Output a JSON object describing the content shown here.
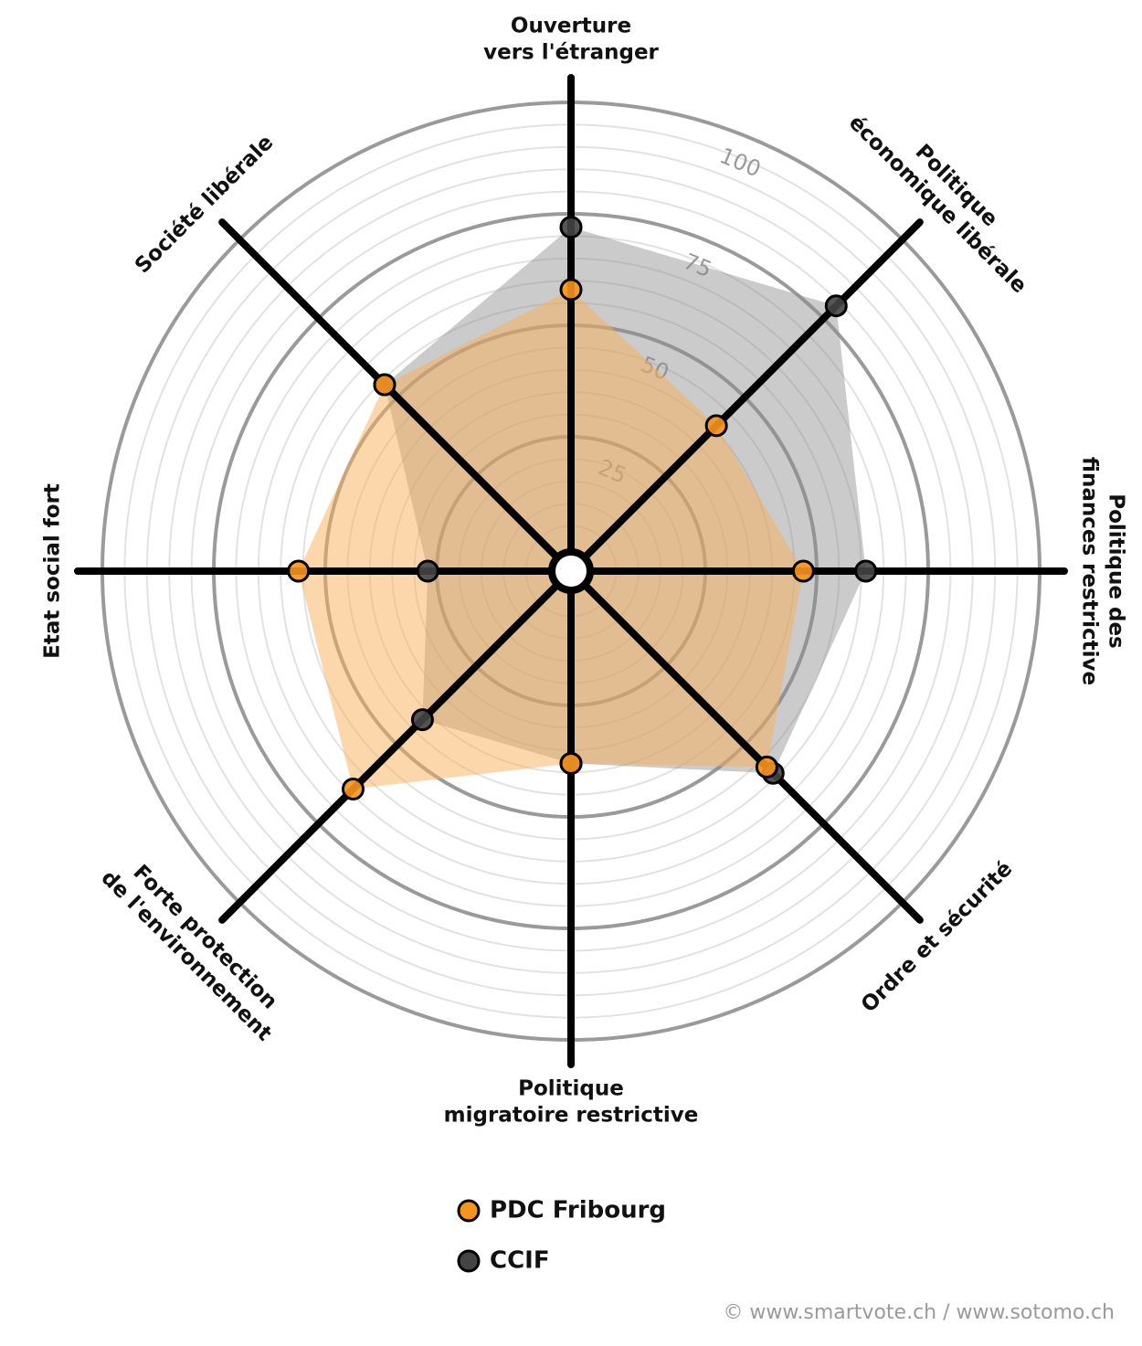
{
  "chart_data": {
    "type": "radar",
    "categories": [
      [
        "Ouverture",
        "vers l'étranger"
      ],
      [
        "Politique",
        "économique libérale"
      ],
      [
        "Politique des",
        "finances restrictive"
      ],
      [
        "Ordre et sécurité"
      ],
      [
        "Politique",
        "migratoire restrictive"
      ],
      [
        "Forte protection",
        "de l'environnement"
      ],
      [
        "Etat social fort"
      ],
      [
        "Société libérale"
      ]
    ],
    "series": [
      {
        "name": "CCIF",
        "color": "#444444",
        "fill": "#8c8c8c",
        "values": [
          72,
          79,
          61,
          59,
          38,
          42,
          27,
          54
        ]
      },
      {
        "name": "PDC Fribourg",
        "color": "#f7941d",
        "fill": "#fbb05a",
        "values": [
          58,
          41,
          47,
          57,
          38,
          64,
          56,
          54
        ]
      }
    ],
    "rlim": [
      0,
      100
    ],
    "rticks": [
      25,
      50,
      75,
      100
    ],
    "minor_rticks": [
      5,
      10,
      15,
      20,
      30,
      35,
      40,
      45,
      55,
      60,
      65,
      70,
      80,
      85,
      90,
      95
    ],
    "legend": "bottom",
    "source": "© www.smartvote.ch / www.sotomo.ch"
  }
}
